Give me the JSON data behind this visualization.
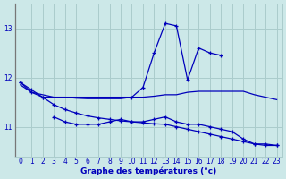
{
  "title": "Graphe des températures (°c)",
  "background_color": "#cce8e8",
  "grid_color": "#aacccc",
  "line_color": "#0000bb",
  "xlim": [
    -0.5,
    23.5
  ],
  "ylim": [
    10.4,
    13.5
  ],
  "yticks": [
    11,
    12,
    13
  ],
  "xticks": [
    0,
    1,
    2,
    3,
    4,
    5,
    6,
    7,
    8,
    9,
    10,
    11,
    12,
    13,
    14,
    15,
    16,
    17,
    18,
    19,
    20,
    21,
    22,
    23
  ],
  "series": {
    "line_spike": {
      "x": [
        0,
        1,
        2,
        3,
        4,
        5,
        6,
        7,
        8,
        9,
        10,
        11,
        12,
        13,
        14,
        15,
        16,
        17,
        18,
        19,
        20,
        21,
        22,
        23
      ],
      "y": [
        11.9,
        11.7,
        11.6,
        null,
        null,
        null,
        null,
        null,
        null,
        null,
        11.6,
        11.8,
        12.5,
        13.1,
        13.05,
        11.95,
        12.6,
        12.5,
        12.45,
        null,
        null,
        null,
        null,
        null
      ]
    },
    "line_flat_upper": {
      "x": [
        0,
        1,
        2,
        3,
        4,
        5,
        6,
        7,
        8,
        9,
        10,
        11,
        12,
        13,
        14,
        15,
        16,
        17,
        18,
        19,
        20,
        21,
        22,
        23
      ],
      "y": [
        11.85,
        11.7,
        11.65,
        11.6,
        11.6,
        11.58,
        11.57,
        11.57,
        11.57,
        11.57,
        11.6,
        11.6,
        11.62,
        11.65,
        11.65,
        11.7,
        11.72,
        11.72,
        11.72,
        11.72,
        11.72,
        11.65,
        11.6,
        11.55
      ]
    },
    "line_flat_lower": {
      "x": [
        0,
        1,
        2,
        3,
        4,
        5,
        6,
        7,
        8,
        9,
        10,
        11,
        12,
        13,
        14,
        15,
        16,
        17,
        18,
        19,
        20,
        21,
        22,
        23
      ],
      "y": [
        null,
        null,
        null,
        11.2,
        11.1,
        11.05,
        11.05,
        11.05,
        11.1,
        11.15,
        11.1,
        11.1,
        11.15,
        11.2,
        11.1,
        11.05,
        11.05,
        11.0,
        10.95,
        10.9,
        10.75,
        10.65,
        10.65,
        10.62
      ]
    },
    "line_declining": {
      "x": [
        0,
        1,
        2,
        3,
        4,
        5,
        6,
        7,
        8,
        9,
        10,
        11,
        12,
        13,
        14,
        15,
        16,
        17,
        18,
        19,
        20,
        21,
        22,
        23
      ],
      "y": [
        11.9,
        11.75,
        11.6,
        11.45,
        11.35,
        11.28,
        11.22,
        11.18,
        11.15,
        11.12,
        11.1,
        11.08,
        11.06,
        11.05,
        11.0,
        10.95,
        10.9,
        10.85,
        10.8,
        10.75,
        10.7,
        10.65,
        10.62,
        10.62
      ]
    }
  }
}
